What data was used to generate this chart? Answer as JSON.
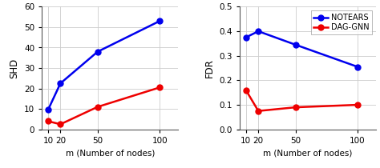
{
  "x": [
    10,
    20,
    50,
    100
  ],
  "shd_notears": [
    9.5,
    22.5,
    38,
    53
  ],
  "shd_daggnn": [
    4,
    2.5,
    11,
    20.5
  ],
  "fdr_notears": [
    0.375,
    0.4,
    0.345,
    0.255
  ],
  "fdr_daggnn": [
    0.16,
    0.075,
    0.09,
    0.1
  ],
  "color_notears": "#0000EE",
  "color_daggnn": "#EE0000",
  "shd_ylim": [
    0,
    60
  ],
  "shd_yticks": [
    0,
    10,
    20,
    30,
    40,
    50,
    60
  ],
  "fdr_ylim": [
    0,
    0.5
  ],
  "fdr_yticks": [
    0.0,
    0.1,
    0.2,
    0.3,
    0.4,
    0.5
  ],
  "xticks": [
    10,
    20,
    50,
    100
  ],
  "xlim": [
    5,
    115
  ],
  "xlabel": "m (Number of nodes)",
  "ylabel_shd": "SHD",
  "ylabel_fdr": "FDR",
  "label_notears": "NOTEARS",
  "label_daggnn": "DAG-GNN",
  "marker": "o",
  "linewidth": 1.8,
  "markersize": 5,
  "grid_color": "#CCCCCC",
  "bg_color": "#FFFFFF"
}
